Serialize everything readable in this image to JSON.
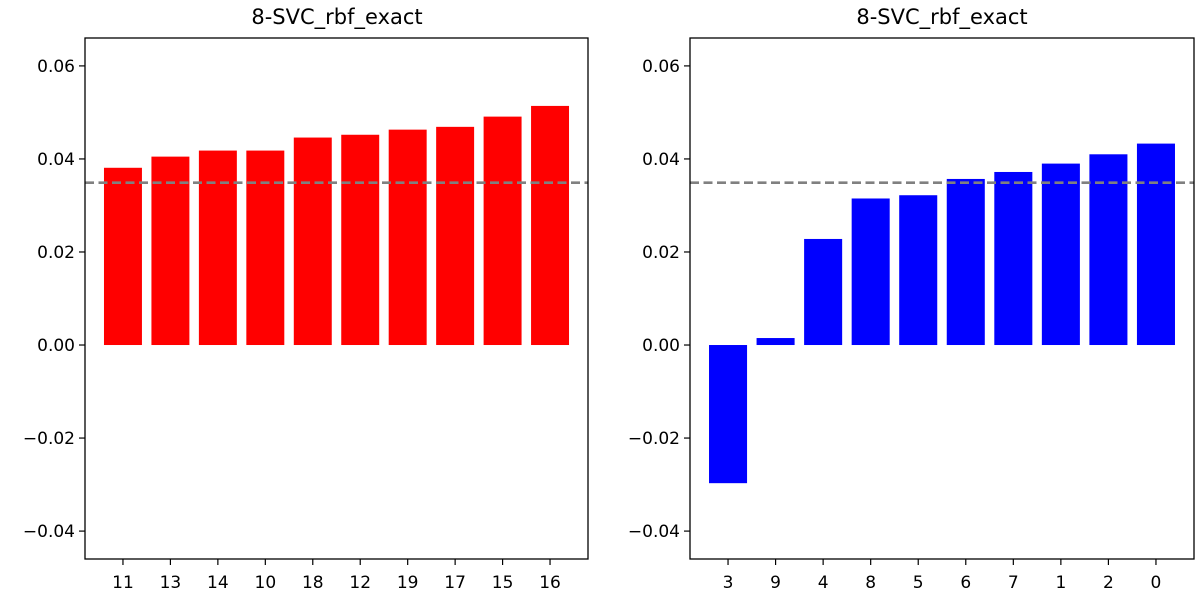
{
  "chart_data": [
    {
      "type": "bar",
      "title": "8-SVC_rbf_exact",
      "categories": [
        "11",
        "13",
        "14",
        "10",
        "18",
        "12",
        "19",
        "17",
        "15",
        "16"
      ],
      "values": [
        0.0381,
        0.0405,
        0.0418,
        0.0418,
        0.0446,
        0.0452,
        0.0463,
        0.0469,
        0.0491,
        0.0514
      ],
      "bar_color": "#ff0000",
      "reference_line": {
        "y": 0.0349,
        "style": "dashed",
        "color": "#808080"
      },
      "ylim": [
        -0.046,
        0.066
      ],
      "yticks": [
        -0.04,
        -0.02,
        0.0,
        0.02,
        0.04,
        0.06
      ],
      "ytick_labels": [
        "−0.04",
        "−0.02",
        "0.00",
        "0.02",
        "0.04",
        "0.06"
      ],
      "xlabel": "",
      "ylabel": "",
      "grid": false
    },
    {
      "type": "bar",
      "title": "8-SVC_rbf_exact",
      "categories": [
        "3",
        "9",
        "4",
        "8",
        "5",
        "6",
        "7",
        "1",
        "2",
        "0"
      ],
      "values": [
        -0.0297,
        0.0015,
        0.0228,
        0.0315,
        0.0322,
        0.0357,
        0.0372,
        0.039,
        0.041,
        0.0433
      ],
      "bar_color": "#0000ff",
      "reference_line": {
        "y": 0.0349,
        "style": "dashed",
        "color": "#808080"
      },
      "ylim": [
        -0.046,
        0.066
      ],
      "yticks": [
        -0.04,
        -0.02,
        0.0,
        0.02,
        0.04,
        0.06
      ],
      "ytick_labels": [
        "−0.04",
        "−0.02",
        "0.00",
        "0.02",
        "0.04",
        "0.06"
      ],
      "xlabel": "",
      "ylabel": "",
      "grid": false
    }
  ]
}
